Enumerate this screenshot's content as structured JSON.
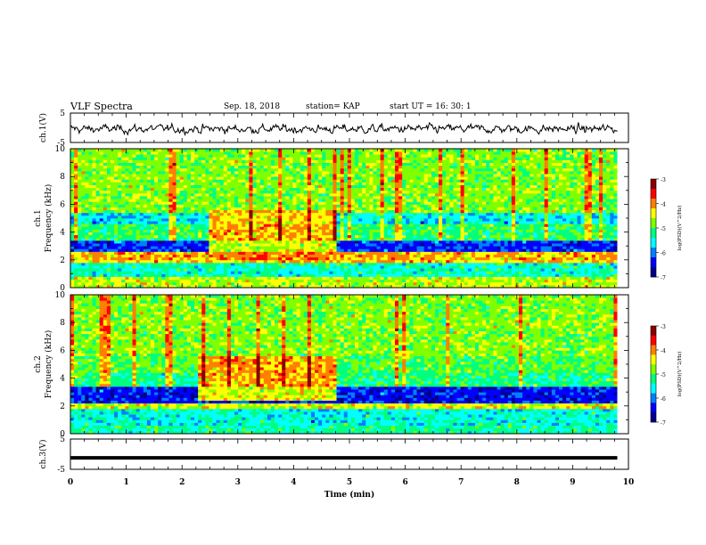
{
  "header": {
    "title": "VLF Spectra",
    "date": "Sep. 18, 2018",
    "station": "station= KAP",
    "start": "start  UT  =   16: 30: 1"
  },
  "colorbar": {
    "label": "log(PSD)(V^2/Hz)",
    "ticks": [
      -3,
      -4,
      -5,
      -6,
      -7
    ],
    "colors": [
      "#8b0000",
      "#ff0000",
      "#ff7f00",
      "#ffff00",
      "#7fff00",
      "#00ff7f",
      "#00ffff",
      "#0080ff",
      "#0000ff",
      "#00008b"
    ]
  },
  "chart_data": [
    {
      "type": "line",
      "name": "ch1-waveform",
      "ylabel": "ch.1(V)",
      "ylim": [
        -5,
        5
      ],
      "yticks": [
        5,
        -5
      ],
      "xlim": [
        0,
        10
      ],
      "description_values": {
        "approx_range": [
          -2.5,
          1.5
        ],
        "noise_like": true
      }
    },
    {
      "type": "heatmap",
      "name": "ch1-spectrogram",
      "ylabel": "ch.1\nFrequency (kHz)",
      "ylim": [
        0,
        10
      ],
      "yticks": [
        0,
        2,
        4,
        6,
        8,
        10
      ],
      "xlim": [
        0,
        9.8
      ],
      "zlabel": "log(PSD)(V^2/Hz)",
      "zlim": [
        -7,
        -3
      ],
      "bands": [
        {
          "f_low": 0,
          "f_high": 0.8,
          "level": -4.6
        },
        {
          "f_low": 0.8,
          "f_high": 1.9,
          "level": -5.4
        },
        {
          "f_low": 1.9,
          "f_high": 2.6,
          "level": -4.2
        },
        {
          "f_low": 2.6,
          "f_high": 3.4,
          "level": -6.3
        },
        {
          "f_low": 3.4,
          "f_high": 4.6,
          "level": -5.1
        },
        {
          "f_low": 4.6,
          "f_high": 5.4,
          "level": -5.6
        },
        {
          "f_low": 5.4,
          "f_high": 10,
          "level": -4.8
        }
      ],
      "enhancement": {
        "t_start": 2.5,
        "t_end": 4.8,
        "f_low": 2,
        "f_high": 5.5,
        "level": -3.8
      }
    },
    {
      "type": "heatmap",
      "name": "ch2-spectrogram",
      "ylabel": "ch.2\nFrequency (kHz)",
      "ylim": [
        0,
        10
      ],
      "yticks": [
        0,
        2,
        4,
        6,
        8,
        10
      ],
      "xlim": [
        0,
        9.8
      ],
      "zlabel": "log(PSD)(V^2/Hz)",
      "zlim": [
        -7,
        -3
      ],
      "bands": [
        {
          "f_low": 0,
          "f_high": 0.7,
          "level": -5.3
        },
        {
          "f_low": 0.7,
          "f_high": 1.8,
          "level": -5.5
        },
        {
          "f_low": 1.8,
          "f_high": 2.2,
          "level": -4.5
        },
        {
          "f_low": 2.2,
          "f_high": 3.4,
          "level": -6.4
        },
        {
          "f_low": 3.4,
          "f_high": 4.5,
          "level": -5.2
        },
        {
          "f_low": 4.5,
          "f_high": 5.6,
          "level": -5.0
        },
        {
          "f_low": 5.6,
          "f_high": 10,
          "level": -4.8
        }
      ],
      "enhancement": {
        "t_start": 2.3,
        "t_end": 4.8,
        "f_low": 2.5,
        "f_high": 5.5,
        "level": -3.7
      }
    },
    {
      "type": "line",
      "name": "ch3-waveform",
      "ylabel": "ch.3(V)",
      "ylim": [
        -5,
        5
      ],
      "yticks": [
        5,
        -5
      ],
      "xlim": [
        0,
        10
      ],
      "xticks": [
        0,
        1,
        2,
        3,
        4,
        5,
        6,
        7,
        8,
        9,
        10
      ],
      "xlabel": "Time (min)",
      "x": [
        0,
        9.8
      ],
      "y": [
        -1.2,
        -1.2
      ]
    }
  ]
}
